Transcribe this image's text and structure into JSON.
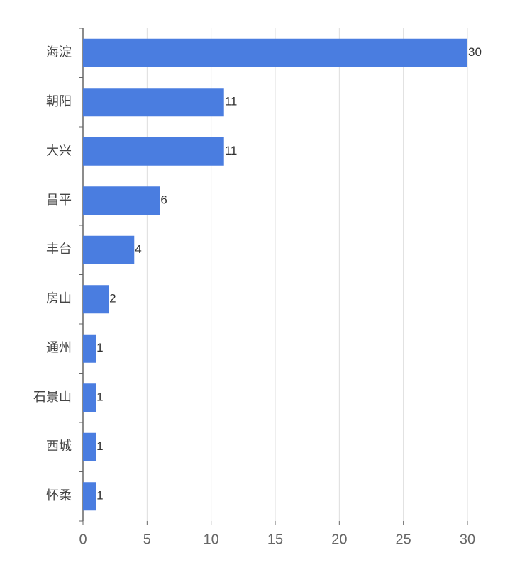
{
  "chart_data": {
    "type": "hbar",
    "categories": [
      "海淀",
      "朝阳",
      "大兴",
      "昌平",
      "丰台",
      "房山",
      "通州",
      "石景山",
      "西城",
      "怀柔"
    ],
    "values": [
      30,
      11,
      11,
      6,
      4,
      2,
      1,
      1,
      1,
      1
    ],
    "color": "#4a7de0",
    "xlim": [
      0,
      30
    ],
    "xticks": [
      0,
      5,
      10,
      15,
      20,
      25,
      30
    ],
    "grid": true
  }
}
